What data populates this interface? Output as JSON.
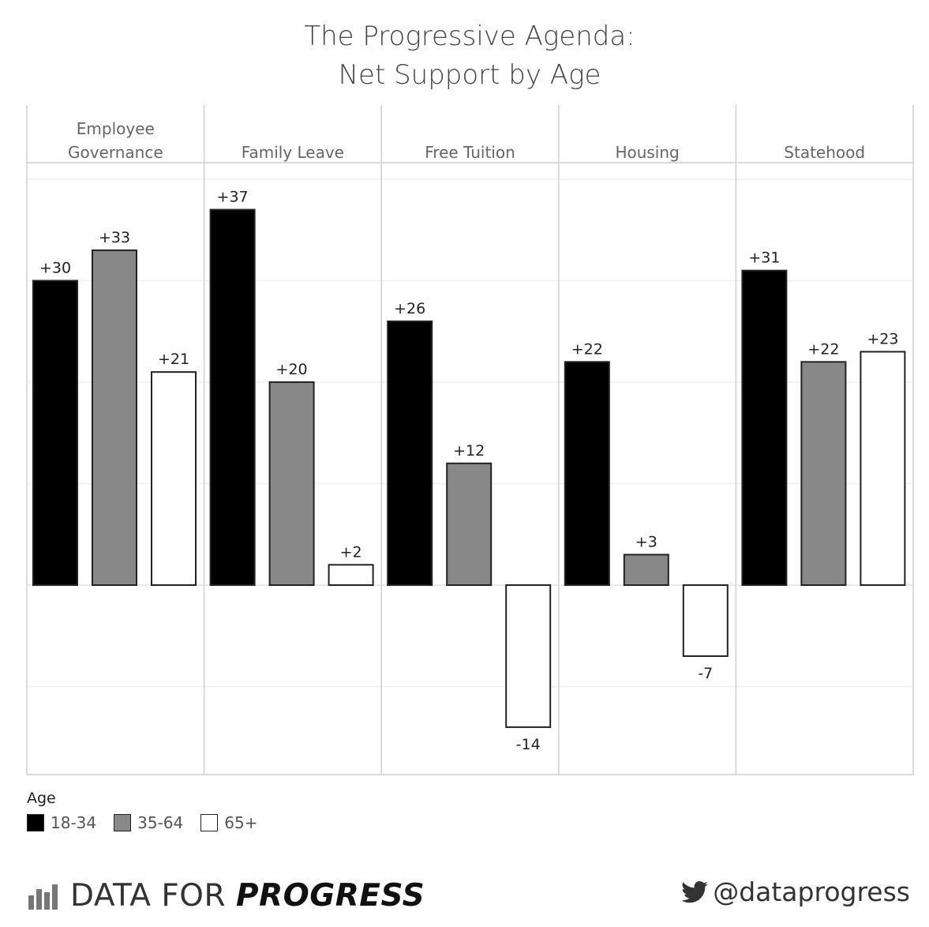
{
  "chart_data": {
    "type": "bar",
    "title_lines": [
      "The Progressive Agenda:",
      "Net Support by Age"
    ],
    "panels": [
      {
        "label_lines": [
          "Employee",
          "Governance"
        ],
        "values": [
          30,
          33,
          21
        ]
      },
      {
        "label_lines": [
          "Family Leave"
        ],
        "values": [
          37,
          20,
          2
        ]
      },
      {
        "label_lines": [
          "Free Tuition"
        ],
        "values": [
          26,
          12,
          -14
        ]
      },
      {
        "label_lines": [
          "Housing"
        ],
        "values": [
          22,
          3,
          -7
        ]
      },
      {
        "label_lines": [
          "Statehood"
        ],
        "values": [
          31,
          22,
          23
        ]
      }
    ],
    "series": [
      {
        "name": "18-34",
        "color": "#000000"
      },
      {
        "name": "35-64",
        "color": "#888888"
      },
      {
        "name": "65+",
        "color": "#ffffff"
      }
    ],
    "legend_title": "Age",
    "legend_position": "bottom-left",
    "ylim": [
      -18.5,
      40
    ],
    "grid_step": 10,
    "grid": true,
    "label_format": "signed"
  },
  "footer": {
    "brand_light": "DATA FOR ",
    "brand_bold": "PROGRESS",
    "handle": "@dataprogress",
    "brand_icon": "bar-chart-logo-icon",
    "social_icon": "twitter-bird-icon"
  }
}
